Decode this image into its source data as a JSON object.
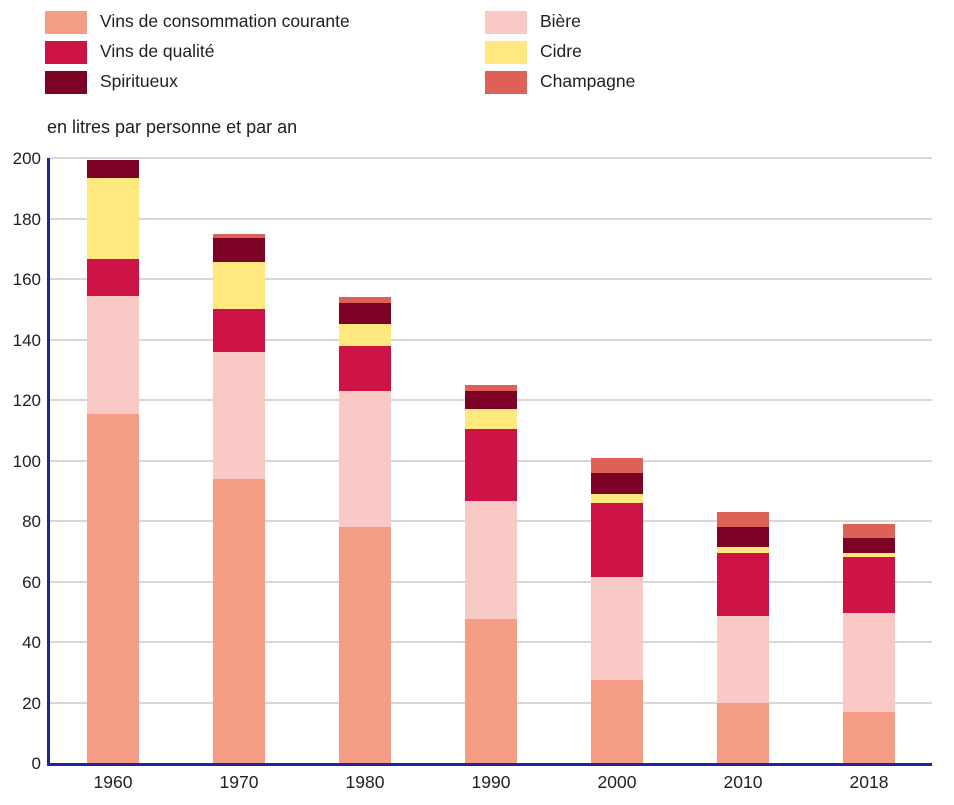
{
  "subtitle": "en litres par personne et par an",
  "legend": {
    "left_column": [
      {
        "label": "Vins de consommation courante",
        "color": "#f59e85"
      },
      {
        "label": "Vins de qualité",
        "color": "#ce1446"
      },
      {
        "label": "Spiritueux",
        "color": "#7d0226"
      }
    ],
    "right_column": [
      {
        "label": "Bière",
        "color": "#f9c9c5"
      },
      {
        "label": "Cidre",
        "color": "#ffe97e"
      },
      {
        "label": "Champagne",
        "color": "#dd6157"
      }
    ]
  },
  "chart_data": {
    "type": "bar",
    "stacked": true,
    "title": "",
    "ylabel": "en litres par personne et par an",
    "xlabel": "",
    "categories": [
      "1960",
      "1970",
      "1980",
      "1990",
      "2000",
      "2010",
      "2018"
    ],
    "series": [
      {
        "name": "Vins de consommation courante",
        "color": "#f59e85",
        "values": [
          115.5,
          94,
          78,
          47.5,
          27.5,
          20,
          17
        ]
      },
      {
        "name": "Bière",
        "color": "#f9c9c5",
        "values": [
          39,
          42,
          45,
          39,
          34,
          28.5,
          32.5
        ]
      },
      {
        "name": "Vins de qualité",
        "color": "#ce1446",
        "values": [
          12,
          14,
          15,
          24,
          24.5,
          21,
          18.5
        ]
      },
      {
        "name": "Cidre",
        "color": "#ffe97e",
        "values": [
          27,
          15.5,
          7,
          6.5,
          3,
          2,
          1.5
        ]
      },
      {
        "name": "Spiritueux",
        "color": "#7d0226",
        "values": [
          6,
          8,
          7,
          6,
          7,
          6.5,
          5
        ]
      },
      {
        "name": "Champagne",
        "color": "#dd6157",
        "values": [
          0,
          1.5,
          2,
          2,
          5,
          5,
          4.5
        ]
      }
    ],
    "stack_order_bottom_to_top": [
      "Vins de consommation courante",
      "Bière",
      "Vins de qualité",
      "Cidre",
      "Spiritueux",
      "Champagne"
    ],
    "ylim": [
      0,
      200
    ],
    "ytick_step": 20,
    "yticks": [
      0,
      20,
      40,
      60,
      80,
      100,
      120,
      140,
      160,
      180,
      200
    ],
    "grid": true,
    "legend_position": "top"
  },
  "colors": {
    "axis": "#23239a",
    "gridline": "#d8d8d8",
    "text": "#1f1f1f"
  }
}
